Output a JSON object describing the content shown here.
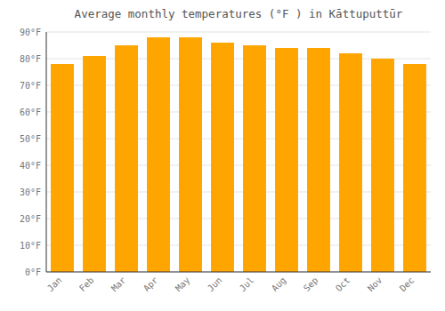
{
  "chart_data": {
    "type": "bar",
    "title": "Average monthly temperatures (°F ) in Kāttuputtūr",
    "categories": [
      "Jan",
      "Feb",
      "Mar",
      "Apr",
      "May",
      "Jun",
      "Jul",
      "Aug",
      "Sep",
      "Oct",
      "Nov",
      "Dec"
    ],
    "values": [
      78,
      81,
      85,
      88,
      88,
      86,
      85,
      84,
      84,
      82,
      80,
      78
    ],
    "color": "#FFA500",
    "ylim": [
      0,
      90
    ],
    "yticks": [
      {
        "value": 0,
        "label": "0°F"
      },
      {
        "value": 10,
        "label": "10°F"
      },
      {
        "value": 20,
        "label": "20°F"
      },
      {
        "value": 30,
        "label": "30°F"
      },
      {
        "value": 40,
        "label": "40°F"
      },
      {
        "value": 50,
        "label": "50°F"
      },
      {
        "value": 60,
        "label": "60°F"
      },
      {
        "value": 70,
        "label": "70°F"
      },
      {
        "value": 80,
        "label": "80°F"
      },
      {
        "value": 90,
        "label": "90°F"
      }
    ],
    "grid": true
  }
}
